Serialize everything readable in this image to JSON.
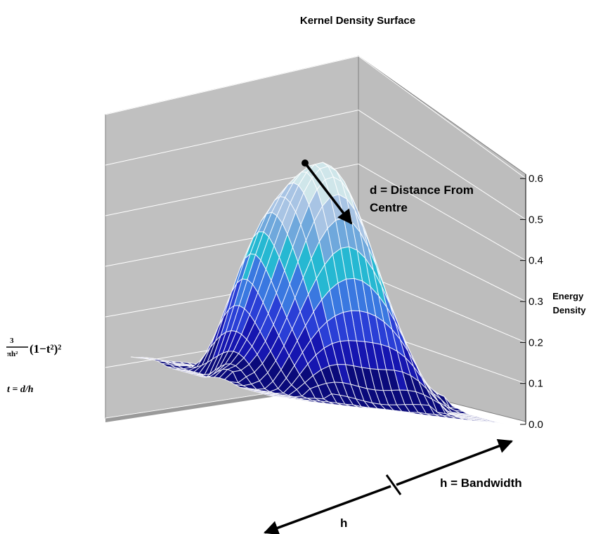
{
  "chart_data": {
    "type": "surface",
    "title": "Kernel Density Surface",
    "zlabel_lines": [
      "Energy",
      "Density"
    ],
    "zticks": [
      "0.0",
      "0.1",
      "0.2",
      "0.3",
      "0.4",
      "0.5",
      "0.6"
    ],
    "zlim": [
      0,
      0.6
    ],
    "peak": 0.6,
    "grid": true,
    "color_bands": [
      "#0a0a7a",
      "#1616b0",
      "#2a3fd6",
      "#3a78e0",
      "#26b8d2",
      "#6fa8dc",
      "#a8c4e4",
      "#cfe6ea"
    ],
    "annotations": {
      "distance_line1": "d = Distance From",
      "distance_line2": "Centre",
      "bandwidth": "h = Bandwidth",
      "h_label": "h",
      "formula_t": "t = d/h"
    }
  }
}
